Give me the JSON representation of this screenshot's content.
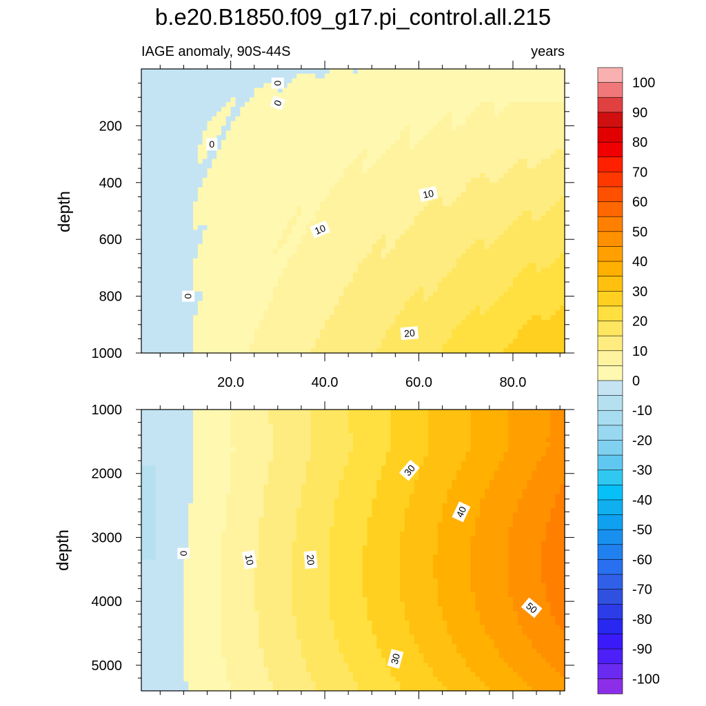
{
  "title": "b.e20.B1850.f09_g17.pi_control.all.215",
  "chart_data": [
    {
      "type": "contour",
      "panel": "upper",
      "left_label": "IAGE anomaly, 90S-44S",
      "right_label": "years",
      "ylabel": "depth",
      "xlabel": "",
      "y_axis_reversed": true,
      "ylim": [
        0,
        1000
      ],
      "xlim": [
        1,
        91
      ],
      "x_ticks": [
        20,
        40,
        60,
        80
      ],
      "x_tick_labels": [
        "20.0",
        "40.0",
        "60.0",
        "80.0"
      ],
      "y_ticks": [
        200,
        400,
        600,
        800,
        1000
      ],
      "y_tick_labels": [
        "200",
        "400",
        "600",
        "800",
        "1000"
      ],
      "zero_contour_x": [
        {
          "depth": 100,
          "x": 28
        },
        {
          "depth": 200,
          "x": 17
        },
        {
          "depth": 300,
          "x": 12
        },
        {
          "depth": 500,
          "x": 11
        },
        {
          "depth": 800,
          "x": 11
        },
        {
          "depth": 1000,
          "x": 11
        }
      ],
      "contour_labels": [
        {
          "text": "0",
          "x": 30,
          "depth": 50,
          "angle": 90
        },
        {
          "text": "0",
          "x": 30,
          "depth": 120,
          "angle": -70
        },
        {
          "text": "0",
          "x": 16,
          "depth": 265,
          "angle": 0
        },
        {
          "text": "0",
          "x": 11,
          "depth": 800,
          "angle": 90
        },
        {
          "text": "10",
          "x": 62,
          "depth": 440,
          "angle": -12
        },
        {
          "text": "10",
          "x": 39,
          "depth": 565,
          "angle": -22
        },
        {
          "text": "20",
          "x": 58,
          "depth": 930,
          "angle": -5
        }
      ]
    },
    {
      "type": "contour",
      "panel": "lower",
      "ylabel": "depth",
      "y_axis_reversed": true,
      "ylim": [
        1000,
        5400
      ],
      "xlim": [
        1,
        91
      ],
      "y_ticks": [
        1000,
        2000,
        3000,
        4000,
        5000
      ],
      "y_tick_labels": [
        "1000",
        "2000",
        "3000",
        "4000",
        "5000"
      ],
      "contour_labels": [
        {
          "text": "0",
          "x": 10,
          "depth": 3250,
          "angle": 90
        },
        {
          "text": "10",
          "x": 24,
          "depth": 3350,
          "angle": 80
        },
        {
          "text": "20",
          "x": 37,
          "depth": 3350,
          "angle": 85
        },
        {
          "text": "30",
          "x": 58,
          "depth": 1950,
          "angle": -50
        },
        {
          "text": "40",
          "x": 69,
          "depth": 2600,
          "angle": -65
        },
        {
          "text": "30",
          "x": 55,
          "depth": 4900,
          "angle": -75
        },
        {
          "text": "50",
          "x": 84,
          "depth": 4100,
          "angle": 40
        }
      ]
    }
  ],
  "colorbar": {
    "levels": [
      -105,
      -100,
      -95,
      -90,
      -85,
      -80,
      -75,
      -70,
      -65,
      -60,
      -55,
      -50,
      -45,
      -40,
      -35,
      -30,
      -25,
      -20,
      -15,
      -10,
      -5,
      0,
      5,
      10,
      15,
      20,
      25,
      30,
      35,
      40,
      45,
      50,
      55,
      60,
      65,
      70,
      75,
      80,
      85,
      90,
      95,
      100,
      105
    ],
    "colors": [
      "#8c2ee8",
      "#6a2af0",
      "#4e20f8",
      "#3a1af8",
      "#2828f0",
      "#2c3ce8",
      "#3050e0",
      "#3060e8",
      "#2870f0",
      "#2080f0",
      "#1890f0",
      "#10a0f0",
      "#10b0f0",
      "#08c0f8",
      "#30c8f0",
      "#60c8f0",
      "#80d0f0",
      "#98d8f0",
      "#a8dcf0",
      "#b4e0f0",
      "#c4e4f4",
      "#fff8b0",
      "#fff3a0",
      "#ffec80",
      "#ffe660",
      "#ffe040",
      "#ffd020",
      "#ffc010",
      "#ffb000",
      "#ffa000",
      "#ff9000",
      "#ff8000",
      "#ff6800",
      "#ff5000",
      "#ff3800",
      "#ff2000",
      "#f00000",
      "#e00000",
      "#d01010",
      "#e04040",
      "#f07878",
      "#f8b0b0"
    ],
    "label_values": [
      100,
      90,
      80,
      70,
      60,
      50,
      40,
      30,
      20,
      10,
      0,
      -10,
      -20,
      -30,
      -40,
      -50,
      -60,
      -70,
      -80,
      -90,
      -100
    ],
    "label_text": [
      "100",
      "90",
      "80",
      "70",
      "60",
      "50",
      "40",
      "30",
      "20",
      "10",
      "0",
      "-10",
      "-20",
      "-30",
      "-40",
      "-50",
      "-60",
      "-70",
      "-80",
      "-90",
      "-100"
    ]
  }
}
